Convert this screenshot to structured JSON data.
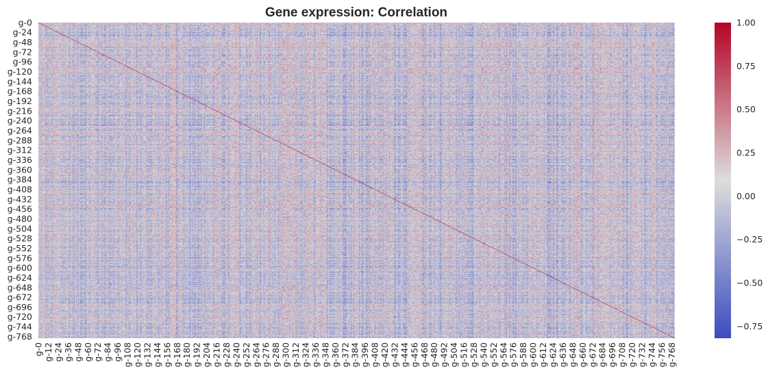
{
  "chart_data": {
    "type": "heatmap",
    "title": "Gene expression: Correlation",
    "matrix_size": 772,
    "row_tick_labels": [
      "g-0",
      "g-24",
      "g-48",
      "g-72",
      "g-96",
      "g-120",
      "g-144",
      "g-168",
      "g-192",
      "g-216",
      "g-240",
      "g-264",
      "g-288",
      "g-312",
      "g-336",
      "g-360",
      "g-384",
      "g-408",
      "g-432",
      "g-456",
      "g-480",
      "g-504",
      "g-528",
      "g-552",
      "g-576",
      "g-600",
      "g-624",
      "g-648",
      "g-672",
      "g-696",
      "g-720",
      "g-744",
      "g-768"
    ],
    "col_tick_labels": [
      "g-0",
      "g-12",
      "g-24",
      "g-36",
      "g-48",
      "g-60",
      "g-72",
      "g-84",
      "g-96",
      "g-108",
      "g-120",
      "g-132",
      "g-144",
      "g-156",
      "g-168",
      "g-180",
      "g-192",
      "g-204",
      "g-216",
      "g-228",
      "g-240",
      "g-252",
      "g-264",
      "g-276",
      "g-288",
      "g-300",
      "g-312",
      "g-324",
      "g-336",
      "g-348",
      "g-360",
      "g-372",
      "g-384",
      "g-396",
      "g-408",
      "g-420",
      "g-432",
      "g-444",
      "g-456",
      "g-468",
      "g-480",
      "g-492",
      "g-504",
      "g-516",
      "g-528",
      "g-540",
      "g-552",
      "g-564",
      "g-576",
      "g-588",
      "g-600",
      "g-612",
      "g-624",
      "g-636",
      "g-648",
      "g-660",
      "g-672",
      "g-684",
      "g-696",
      "g-708",
      "g-720",
      "g-732",
      "g-744",
      "g-756",
      "g-768"
    ],
    "diagonal_value": 1.0,
    "value_range": [
      -0.82,
      1.0
    ],
    "colormap": "coolwarm",
    "colormap_stops": [
      "#3b4cc0",
      "#dddddd",
      "#b40426"
    ],
    "colorbar_ticks": [
      1.0,
      0.75,
      0.5,
      0.25,
      0.0,
      -0.25,
      -0.5,
      -0.75
    ],
    "colorbar_tick_labels": [
      "1.00",
      "0.75",
      "0.50",
      "0.25",
      "0.00",
      "−0.25",
      "−0.50",
      "−0.75"
    ]
  }
}
